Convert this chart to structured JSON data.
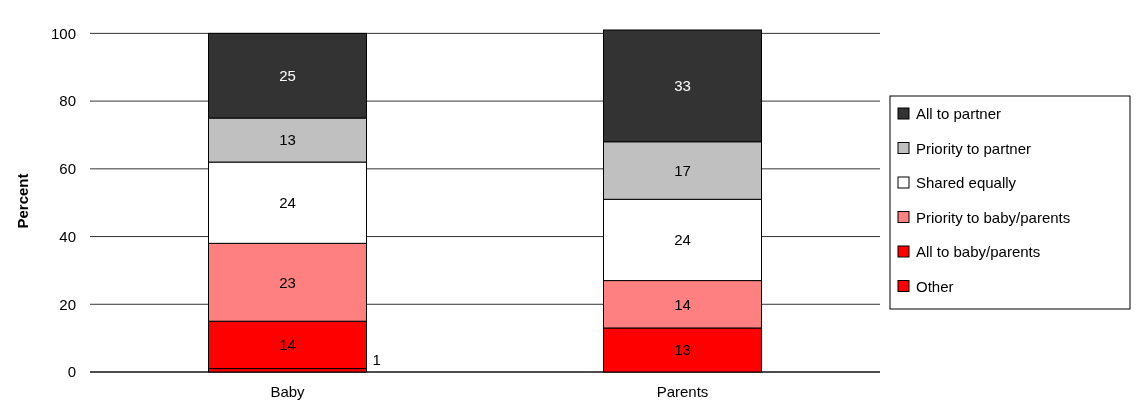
{
  "chart_data": {
    "type": "bar",
    "ylabel": "Percent",
    "categories": [
      "Baby",
      "Parents"
    ],
    "stacked": true,
    "data_labels": true,
    "grid": "y",
    "legend": "right",
    "ylim": [
      0,
      101
    ],
    "yticks": [
      0,
      20,
      40,
      60,
      80,
      100
    ],
    "series": [
      {
        "name": "Other",
        "color": "#ff0000",
        "values": [
          1,
          null
        ]
      },
      {
        "name": "All to baby/parents",
        "color": "#ff0000",
        "values": [
          14,
          13
        ]
      },
      {
        "name": "Priority to baby/parents",
        "color": "#ff8080",
        "values": [
          23,
          14
        ]
      },
      {
        "name": "Shared equally",
        "color": "#ffffff",
        "values": [
          24,
          24
        ]
      },
      {
        "name": "Priority to partner",
        "color": "#c0c0c0",
        "values": [
          13,
          17
        ]
      },
      {
        "name": "All to partner",
        "color": "#333333",
        "values": [
          25,
          33
        ]
      }
    ]
  }
}
